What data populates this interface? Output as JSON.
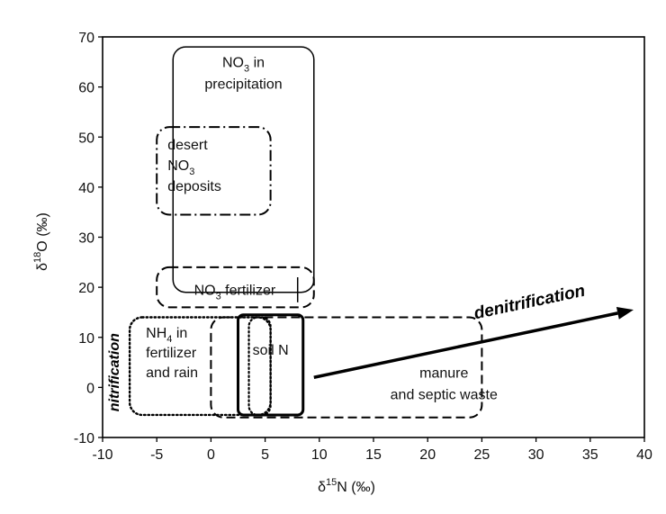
{
  "chart_data": {
    "type": "scatter",
    "title": "",
    "xlabel": "δ15N (‰)",
    "ylabel": "δ18O (‰)",
    "xlim": [
      -10,
      40
    ],
    "ylim": [
      -10,
      70
    ],
    "xticks": [
      "-10",
      "-5",
      "0",
      "5",
      "10",
      "15",
      "20",
      "25",
      "30",
      "35",
      "40"
    ],
    "yticks": [
      "-10",
      "0",
      "10",
      "20",
      "30",
      "40",
      "50",
      "60",
      "70"
    ],
    "grid": false,
    "zones": [
      {
        "id": "no3-precip",
        "lines": [
          "NO3 in",
          "precipitation"
        ],
        "x": [
          -3.5,
          9.5
        ],
        "y": [
          19,
          68
        ],
        "style": "solid"
      },
      {
        "id": "desert-no3",
        "lines": [
          "desert",
          "NO3",
          "deposits"
        ],
        "x": [
          -5,
          5.5
        ],
        "y": [
          34.5,
          52
        ],
        "style": "dashdot"
      },
      {
        "id": "no3-fertilizer",
        "lines": [
          "NO3 fertilizer"
        ],
        "x": [
          -5,
          9.5
        ],
        "y": [
          16,
          24
        ],
        "style": "dashed"
      },
      {
        "id": "nh4",
        "lines": [
          "NH4 in",
          "fertilizer",
          "and rain"
        ],
        "x": [
          -7.5,
          5.5
        ],
        "y": [
          -5.5,
          14
        ],
        "style": "dotted"
      },
      {
        "id": "soil-n",
        "lines": [
          "soil N"
        ],
        "x": [
          2.5,
          8.5
        ],
        "y": [
          -5.5,
          14.5
        ],
        "style": "thick"
      },
      {
        "id": "manure",
        "lines": [
          "manure",
          "and septic waste"
        ],
        "x": [
          0,
          25
        ],
        "y": [
          -6,
          14
        ],
        "style": "dashed"
      }
    ],
    "arrow": {
      "label": "denitrification",
      "from": [
        9.5,
        2
      ],
      "to": [
        39,
        15.5
      ]
    },
    "rotated_label": "nitrification"
  }
}
